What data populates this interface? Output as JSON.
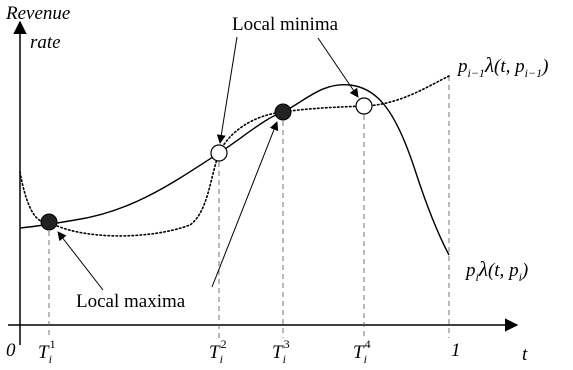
{
  "axes": {
    "y_label_line1": "Revenue",
    "y_label_line2": "rate",
    "x_label": "t",
    "origin_label": "0",
    "end_label": "1"
  },
  "ticks": [
    {
      "base": "T",
      "sub": "i",
      "sup": "1"
    },
    {
      "base": "T",
      "sub": "i",
      "sup": "2"
    },
    {
      "base": "T",
      "sub": "i",
      "sup": "3"
    },
    {
      "base": "T",
      "sub": "i",
      "sup": "4"
    }
  ],
  "annotations": {
    "local_minima": "Local minima",
    "local_maxima": "Local maxima"
  },
  "curve_labels": {
    "dotted": {
      "p": "p",
      "p_sub": "i−1",
      "lambda": "λ",
      "args_open": "(t, ",
      "p2": "p",
      "p2_sub": "i−1",
      "args_close": ")"
    },
    "solid": {
      "p": "p",
      "p_sub": "i",
      "lambda": "λ",
      "args_open": "(t, ",
      "p2": "p",
      "p2_sub": "i",
      "args_close": ")"
    }
  },
  "markers": {
    "maxima": "filled",
    "minima": "hollow"
  }
}
